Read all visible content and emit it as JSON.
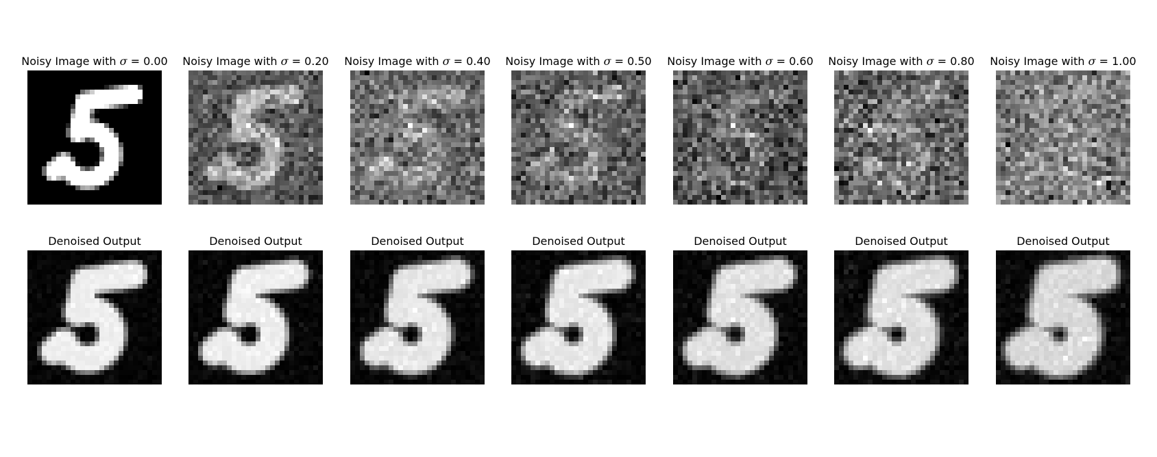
{
  "noisy_label": "Noisy Image with",
  "sigma_symbol": "σ",
  "equals": " = ",
  "denoised_label": "Denoised Output",
  "sigmas": [
    "0.00",
    "0.20",
    "0.40",
    "0.50",
    "0.60",
    "0.80",
    "1.00"
  ],
  "digit": "5",
  "colormap": "gray"
}
